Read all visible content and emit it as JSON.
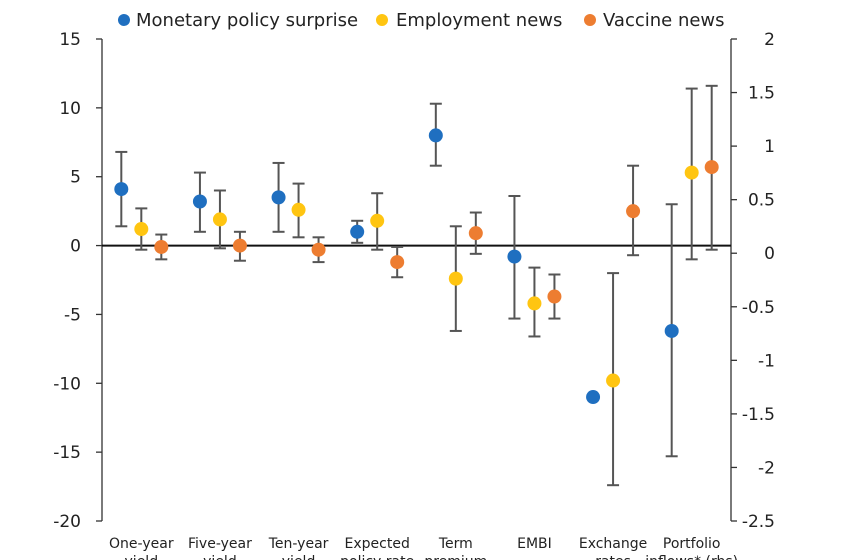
{
  "chart_data": {
    "type": "scatter",
    "title": "",
    "xlabel": "",
    "ylabel": "",
    "categories": [
      [
        "One-year",
        "yield"
      ],
      [
        "Five-year",
        "yield"
      ],
      [
        "Ten-year",
        "yield"
      ],
      [
        "Expected",
        "policy rate"
      ],
      [
        "Term",
        "premium"
      ],
      [
        "EMBI",
        ""
      ],
      [
        "Exchange",
        "rates"
      ],
      [
        "Portfolio",
        "inflows* (rhs)"
      ]
    ],
    "ylim": [
      -20,
      15
    ],
    "yticks": [
      15,
      10,
      5,
      0,
      -5,
      -10,
      -15,
      -20
    ],
    "y2lim": [
      -2.5,
      2
    ],
    "y2ticks": [
      "2",
      "1.5",
      "1",
      "0.5",
      "0",
      "-0.5",
      "-1",
      "-1.5",
      "-2",
      "-2.5"
    ],
    "legend_position": "top",
    "error_bars": true,
    "series": [
      {
        "name": "Monetary policy surprise",
        "color": "#1f6fc0",
        "axis": "left",
        "values": [
          4.1,
          3.2,
          3.5,
          1.0,
          8.0,
          -0.8,
          -11.0,
          -6.2
        ],
        "low": [
          1.4,
          1.0,
          1.0,
          0.2,
          5.8,
          -5.3,
          null,
          -15.3
        ],
        "high": [
          6.8,
          5.3,
          6.0,
          1.8,
          10.3,
          3.6,
          null,
          3.0
        ]
      },
      {
        "name": "Employment news",
        "color": "#ffc511",
        "axis": "left",
        "values": [
          1.2,
          1.9,
          2.6,
          1.8,
          -2.4,
          -4.2,
          -9.8,
          5.3
        ],
        "low": [
          -0.3,
          -0.2,
          0.6,
          -0.3,
          -6.2,
          -6.6,
          -17.4,
          -1.0
        ],
        "high": [
          2.7,
          4.0,
          4.5,
          3.8,
          1.4,
          -1.6,
          -2.0,
          11.4
        ]
      },
      {
        "name": "Vaccine news",
        "color": "#ed7d31",
        "axis": "left",
        "values": [
          -0.1,
          0.0,
          -0.3,
          -1.2,
          0.9,
          -3.7,
          2.5,
          5.7
        ],
        "low": [
          -1.0,
          -1.1,
          -1.2,
          -2.3,
          -0.6,
          -5.3,
          -0.7,
          -0.3
        ],
        "high": [
          0.8,
          1.0,
          0.6,
          -0.1,
          2.4,
          -2.1,
          5.8,
          11.6
        ]
      }
    ]
  }
}
